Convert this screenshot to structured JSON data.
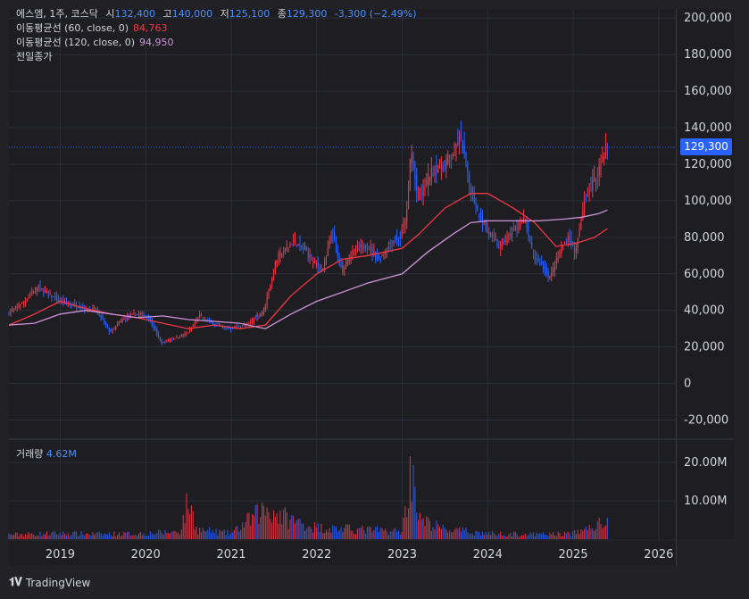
{
  "header": {
    "symbol": "에스엠, 1주, 코스닥",
    "open_label": "시",
    "open": "132,400",
    "high_label": "고",
    "high": "140,000",
    "low_label": "저",
    "low": "125,100",
    "close_label": "종",
    "close": "129,300",
    "change": "-3,300 (−2.49%)"
  },
  "indicators": [
    {
      "label": "이동평균선 (60, close, 0)",
      "value": "84,763",
      "color": "#f23645"
    },
    {
      "label": "이동평균선 (120, close, 0)",
      "value": "94,950",
      "color": "#ce93d8"
    }
  ],
  "prev_close_label": "전일종가",
  "volume": {
    "label": "거래량",
    "value": "4.62M"
  },
  "last_price_tag": "129,300",
  "footer": {
    "brand": "TradingView"
  },
  "colors": {
    "background": "#1e1e22",
    "up": "#f23645",
    "down": "#2962ff",
    "accent": "#2962ff",
    "ma60": "#f23645",
    "ma120": "#ce93d8",
    "blue_text": "#4f8ff5"
  },
  "chart_data": {
    "type": "candlestick",
    "price_axis": {
      "ticks": [
        200000,
        180000,
        160000,
        140000,
        120000,
        100000,
        80000,
        60000,
        40000,
        20000,
        0,
        -20000
      ],
      "tick_labels": [
        "200,000",
        "180,000",
        "160,000",
        "140,000",
        "120,000",
        "100,000",
        "80,000",
        "60,000",
        "40,000",
        "20,000",
        "0",
        "-20,000"
      ],
      "range": [
        -30000,
        205000
      ]
    },
    "volume_axis": {
      "ticks": [
        20000000,
        10000000
      ],
      "tick_labels": [
        "20.00M",
        "10.00M"
      ],
      "range": [
        0,
        24000000
      ]
    },
    "time_axis": {
      "labels": [
        "2019",
        "2020",
        "2021",
        "2022",
        "2023",
        "2024",
        "2025",
        "2026"
      ],
      "positions": [
        2019,
        2020,
        2021,
        2022,
        2023,
        2024,
        2025,
        2026
      ],
      "range": [
        2018.4,
        2026.2
      ]
    },
    "last_price": 129300,
    "price_path": [
      [
        2018.4,
        38000
      ],
      [
        2018.6,
        45000
      ],
      [
        2018.75,
        53000
      ],
      [
        2018.85,
        50000
      ],
      [
        2019.0,
        45000
      ],
      [
        2019.25,
        42000
      ],
      [
        2019.45,
        40000
      ],
      [
        2019.6,
        28000
      ],
      [
        2019.75,
        35000
      ],
      [
        2019.9,
        38000
      ],
      [
        2020.05,
        37000
      ],
      [
        2020.2,
        22000
      ],
      [
        2020.35,
        25000
      ],
      [
        2020.5,
        27000
      ],
      [
        2020.65,
        37000
      ],
      [
        2020.8,
        33000
      ],
      [
        2021.0,
        30000
      ],
      [
        2021.2,
        32000
      ],
      [
        2021.4,
        40000
      ],
      [
        2021.55,
        68000
      ],
      [
        2021.75,
        78000
      ],
      [
        2021.9,
        72000
      ],
      [
        2022.0,
        65000
      ],
      [
        2022.1,
        63000
      ],
      [
        2022.2,
        83000
      ],
      [
        2022.3,
        62000
      ],
      [
        2022.45,
        72000
      ],
      [
        2022.6,
        76000
      ],
      [
        2022.75,
        68000
      ],
      [
        2022.9,
        78000
      ],
      [
        2023.0,
        80000
      ],
      [
        2023.08,
        95000
      ],
      [
        2023.12,
        130000
      ],
      [
        2023.2,
        100000
      ],
      [
        2023.35,
        115000
      ],
      [
        2023.5,
        120000
      ],
      [
        2023.6,
        125000
      ],
      [
        2023.7,
        135000
      ],
      [
        2023.8,
        110000
      ],
      [
        2023.9,
        95000
      ],
      [
        2024.0,
        85000
      ],
      [
        2024.15,
        75000
      ],
      [
        2024.3,
        82000
      ],
      [
        2024.45,
        90000
      ],
      [
        2024.55,
        70000
      ],
      [
        2024.65,
        65000
      ],
      [
        2024.75,
        58000
      ],
      [
        2024.85,
        70000
      ],
      [
        2024.95,
        80000
      ],
      [
        2025.05,
        72000
      ],
      [
        2025.15,
        100000
      ],
      [
        2025.3,
        115000
      ],
      [
        2025.4,
        129300
      ]
    ],
    "ma60_path": [
      [
        2018.4,
        32000
      ],
      [
        2018.7,
        38000
      ],
      [
        2019.0,
        45000
      ],
      [
        2019.3,
        41000
      ],
      [
        2019.6,
        38000
      ],
      [
        2019.9,
        36000
      ],
      [
        2020.2,
        33000
      ],
      [
        2020.5,
        30000
      ],
      [
        2020.8,
        32000
      ],
      [
        2021.1,
        30000
      ],
      [
        2021.4,
        32000
      ],
      [
        2021.7,
        48000
      ],
      [
        2022.0,
        60000
      ],
      [
        2022.3,
        68000
      ],
      [
        2022.6,
        70000
      ],
      [
        2023.0,
        74000
      ],
      [
        2023.2,
        82000
      ],
      [
        2023.5,
        96000
      ],
      [
        2023.8,
        104000
      ],
      [
        2024.0,
        104000
      ],
      [
        2024.3,
        96000
      ],
      [
        2024.55,
        88000
      ],
      [
        2024.8,
        75000
      ],
      [
        2025.05,
        77000
      ],
      [
        2025.25,
        80000
      ],
      [
        2025.4,
        84763
      ]
    ],
    "ma120_path": [
      [
        2018.4,
        32000
      ],
      [
        2018.7,
        33000
      ],
      [
        2019.0,
        38000
      ],
      [
        2019.3,
        40000
      ],
      [
        2019.6,
        38000
      ],
      [
        2019.9,
        36000
      ],
      [
        2020.2,
        37000
      ],
      [
        2020.5,
        35000
      ],
      [
        2020.8,
        34000
      ],
      [
        2021.1,
        33000
      ],
      [
        2021.4,
        30000
      ],
      [
        2021.7,
        38000
      ],
      [
        2022.0,
        45000
      ],
      [
        2022.3,
        50000
      ],
      [
        2022.6,
        55000
      ],
      [
        2023.0,
        60000
      ],
      [
        2023.3,
        72000
      ],
      [
        2023.6,
        82000
      ],
      [
        2023.8,
        88000
      ],
      [
        2024.0,
        89000
      ],
      [
        2024.3,
        89000
      ],
      [
        2024.6,
        89000
      ],
      [
        2024.9,
        90000
      ],
      [
        2025.1,
        91000
      ],
      [
        2025.3,
        93000
      ],
      [
        2025.4,
        94950
      ]
    ],
    "volume_path": [
      [
        2018.4,
        1200000
      ],
      [
        2019.0,
        1500000
      ],
      [
        2019.5,
        1300000
      ],
      [
        2020.0,
        1500000
      ],
      [
        2020.4,
        2000000
      ],
      [
        2020.5,
        10000000
      ],
      [
        2020.6,
        2500000
      ],
      [
        2021.0,
        1500000
      ],
      [
        2021.4,
        8000000
      ],
      [
        2021.7,
        5000000
      ],
      [
        2022.0,
        3000000
      ],
      [
        2022.5,
        2500000
      ],
      [
        2023.0,
        2000000
      ],
      [
        2023.12,
        20000000
      ],
      [
        2023.2,
        5000000
      ],
      [
        2023.5,
        2500000
      ],
      [
        2024.0,
        1500000
      ],
      [
        2024.5,
        1200000
      ],
      [
        2025.0,
        1500000
      ],
      [
        2025.4,
        4620000
      ]
    ]
  }
}
